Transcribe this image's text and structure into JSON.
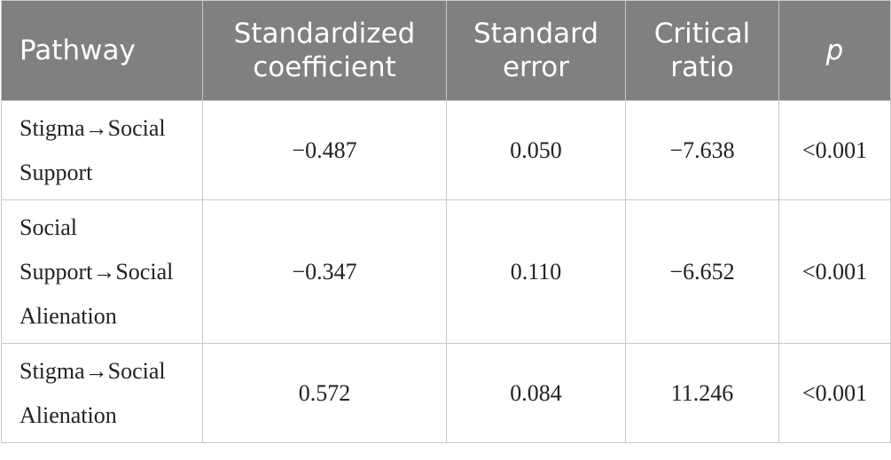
{
  "table": {
    "header": [
      "Pathway",
      "Standardized coefficient",
      "Standard error",
      "Critical ratio",
      "p"
    ],
    "rows": [
      [
        "Stigma→Social Support",
        "−0.487",
        "0.050",
        "−7.638",
        "<0.001"
      ],
      [
        "Social Support→Social Alienation",
        "−0.347",
        "0.110",
        "−6.652",
        "<0.001"
      ],
      [
        "Stigma→Social Alienation",
        "0.572",
        "0.084",
        "11.246",
        "<0.001"
      ]
    ]
  }
}
